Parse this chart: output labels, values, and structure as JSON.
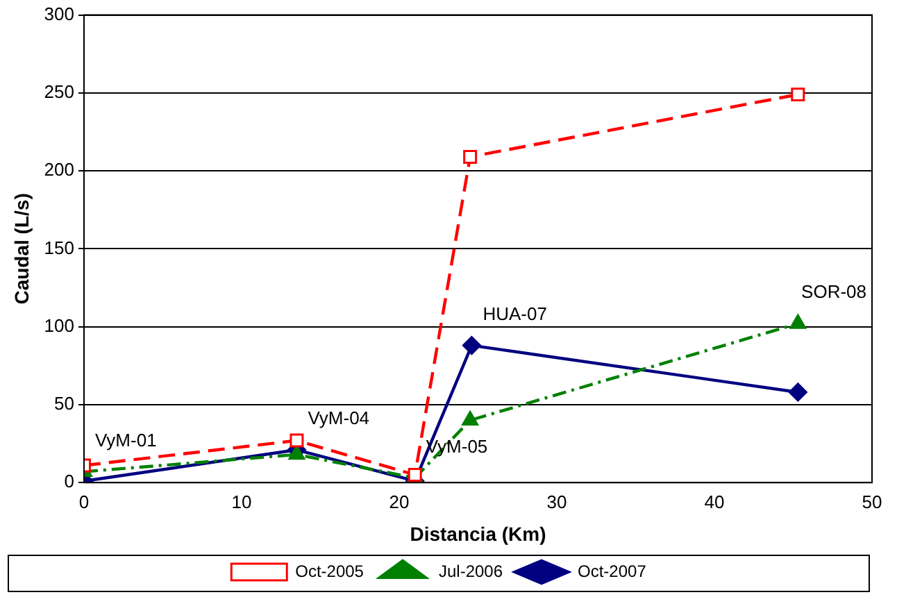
{
  "chart_data": {
    "type": "line",
    "xlabel": "Distancia (Km)",
    "ylabel": "Caudal (L/s)",
    "xlim": [
      0,
      50
    ],
    "xticks": [
      0,
      10,
      20,
      30,
      40,
      50
    ],
    "ylim": [
      0,
      300
    ],
    "yticks": [
      0,
      50,
      100,
      150,
      200,
      250,
      300
    ],
    "grid": "y",
    "legend": "bottom",
    "series": [
      {
        "name": "Oct-2005",
        "color": "#ff0000",
        "marker": "square",
        "line_style": "dashed",
        "x": [
          0,
          13.5,
          21,
          24.5,
          45.3
        ],
        "values": [
          11,
          27,
          5,
          209,
          249
        ]
      },
      {
        "name": "Jul-2006",
        "color": "#008000",
        "marker": "triangle",
        "line_style": "dashdot",
        "x": [
          0,
          13.5,
          21,
          24.5,
          45.3
        ],
        "values": [
          7,
          18,
          3,
          40,
          102
        ]
      },
      {
        "name": "Oct-2007",
        "color": "#000080",
        "marker": "diamond",
        "line_style": "solid",
        "x": [
          0,
          13.5,
          21,
          24.6,
          45.3
        ],
        "values": [
          1,
          21,
          1,
          88,
          58
        ]
      }
    ],
    "annotations": [
      "VyM-01",
      "VyM-04",
      "VyM-05",
      "HUA-07",
      "SOR-08"
    ]
  }
}
